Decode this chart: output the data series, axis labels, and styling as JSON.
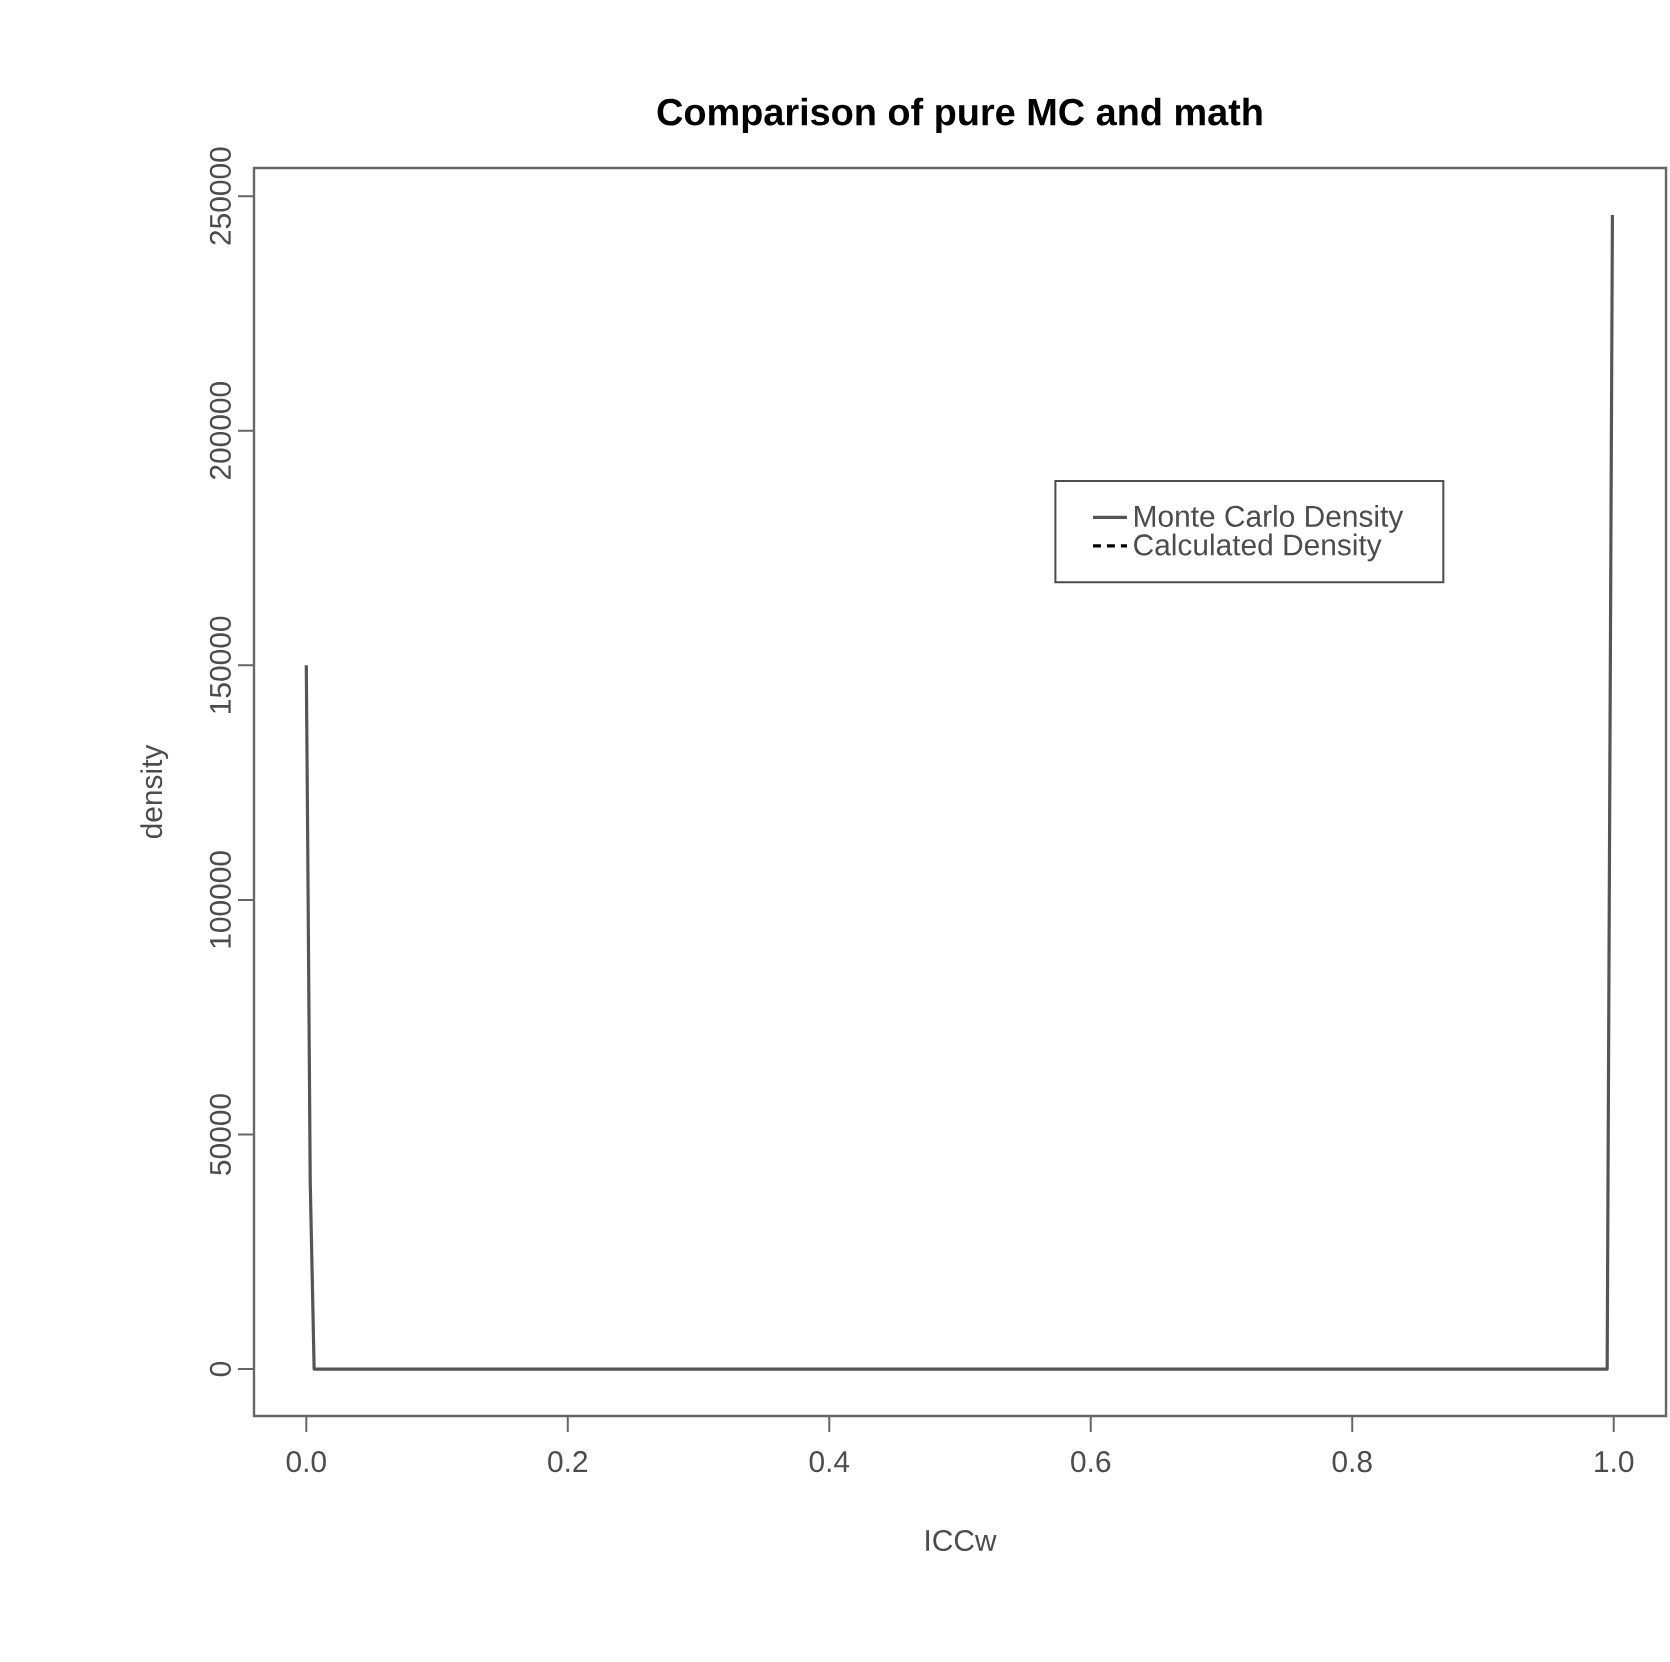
{
  "chart_data": {
    "type": "line",
    "title": "Comparison of pure MC and math",
    "xlabel": "ICCw",
    "ylabel": "density",
    "xlim": [
      -0.04,
      1.04
    ],
    "ylim": [
      -10000,
      256000
    ],
    "xticks": [
      {
        "value": 0,
        "label": "0.0"
      },
      {
        "value": 0.2,
        "label": "0.2"
      },
      {
        "value": 0.4,
        "label": "0.4"
      },
      {
        "value": 0.6,
        "label": "0.6"
      },
      {
        "value": 0.8,
        "label": "0.8"
      },
      {
        "value": 1,
        "label": "1.0"
      }
    ],
    "yticks": [
      0,
      50000,
      100000,
      150000,
      200000,
      250000
    ],
    "series": [
      {
        "name": "Monte Carlo Density",
        "color": "#555555",
        "line_style": "solid",
        "x": [
          0,
          0.001,
          0.003,
          0.006,
          0.995,
          0.997,
          0.999
        ],
        "values": [
          150000,
          115000,
          40000,
          0,
          0,
          125000,
          246000
        ]
      },
      {
        "name": "Calculated Density",
        "color": "#000000",
        "line_style": "dashed",
        "values": [
          null
        ]
      }
    ],
    "legend": "top right",
    "grid": false,
    "marker": "none"
  }
}
